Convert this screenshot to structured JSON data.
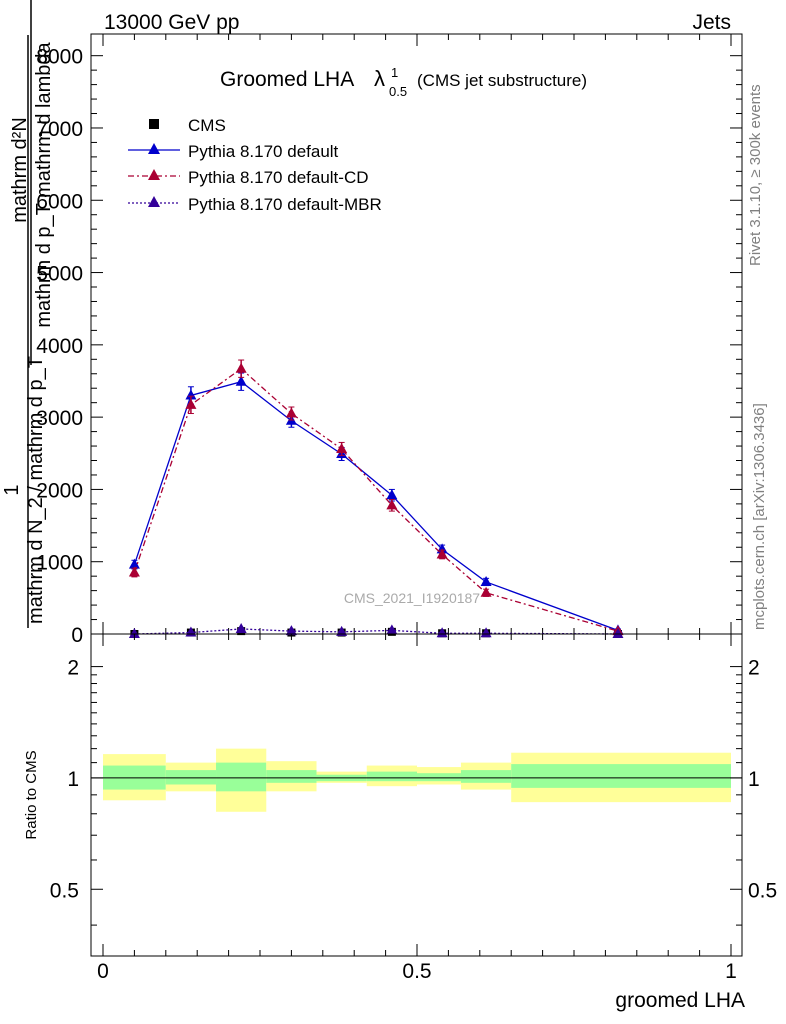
{
  "header": {
    "left": "13000 GeV pp",
    "right": "Jets"
  },
  "side_labels": {
    "rivet": "Rivet 3.1.10, ≥ 300k events",
    "mcplots": "mcplots.cern.ch [arXiv:1306.3436]"
  },
  "watermark": "CMS_2021_I1920187",
  "colors": {
    "cms": "#000000",
    "default": "#0000cc",
    "cd": "#aa0033",
    "mbr": "#330099",
    "band_inner": "#99ff99",
    "band_outer": "#ffff99"
  },
  "chart_data": [
    {
      "type": "line",
      "title": "Groomed LHA",
      "title_symbol": "λ",
      "title_sup": "1",
      "title_sub": "0.5",
      "title_note": "(CMS jet substructure)",
      "ylabel_numerator": "mathrm d²N",
      "ylabel_denominator": "mathrm d p_T mathrm d lambda",
      "ylabel_prefix": "1",
      "ylabel_prefix_den": "mathrm d N / mathrm d p_T",
      "ylabel_lines": [
        "mathrm d²N",
        "mathrm d p_T mathrm d lambda",
        "1",
        "mathrm d N_2 / mathrm d p_T"
      ],
      "xlim": [
        0,
        1
      ],
      "ylim": [
        0,
        8300
      ],
      "yticks": [
        0,
        1000,
        2000,
        3000,
        4000,
        5000,
        6000,
        7000,
        8000
      ],
      "ytick_labels": [
        "0",
        "1000",
        "2000",
        "3000",
        "4000",
        "5000",
        "6000",
        "7000",
        "8000"
      ],
      "legend_position": "top-left",
      "series": [
        {
          "name": "CMS",
          "marker": "square",
          "style": "none",
          "x": [
            0.05,
            0.14,
            0.22,
            0.3,
            0.38,
            0.46,
            0.54,
            0.61,
            0.82
          ],
          "y": [
            0,
            20,
            40,
            20,
            20,
            30,
            10,
            10,
            0
          ]
        },
        {
          "name": "Pythia 8.170 default",
          "marker": "triangle",
          "style": "solid",
          "x": [
            0.05,
            0.14,
            0.22,
            0.3,
            0.38,
            0.46,
            0.54,
            0.61,
            0.82
          ],
          "y": [
            960,
            3300,
            3490,
            2950,
            2490,
            1920,
            1170,
            720,
            50
          ],
          "yerr": [
            60,
            120,
            120,
            90,
            90,
            80,
            60,
            50,
            20
          ]
        },
        {
          "name": "Pythia 8.170 default-CD",
          "marker": "triangle",
          "style": "dashdot",
          "x": [
            0.05,
            0.14,
            0.22,
            0.3,
            0.38,
            0.46,
            0.54,
            0.61,
            0.82
          ],
          "y": [
            850,
            3170,
            3670,
            3050,
            2560,
            1780,
            1100,
            570,
            40
          ],
          "yerr": [
            60,
            120,
            120,
            90,
            90,
            80,
            60,
            50,
            20
          ]
        },
        {
          "name": "Pythia 8.170 default-MBR",
          "marker": "triangle",
          "style": "dotted",
          "x": [
            0.05,
            0.14,
            0.22,
            0.3,
            0.38,
            0.46,
            0.54,
            0.61,
            0.82
          ],
          "y": [
            0,
            20,
            70,
            40,
            30,
            50,
            10,
            10,
            0
          ],
          "yerr": [
            5,
            5,
            10,
            5,
            5,
            5,
            5,
            5,
            5
          ]
        }
      ]
    },
    {
      "type": "area",
      "ylabel": "Ratio to CMS",
      "xlabel": "groomed LHA",
      "xlim": [
        0,
        1
      ],
      "xticks": [
        0,
        0.5,
        1
      ],
      "xtick_labels": [
        "0",
        "0.5",
        "1"
      ],
      "ylim": [
        0.33,
        2.45
      ],
      "yscale": "log",
      "yticks": [
        0.5,
        1,
        2
      ],
      "ytick_labels": [
        "0.5",
        "1",
        "2"
      ],
      "bins": [
        {
          "lo": 0.0,
          "hi": 0.1,
          "inner": [
            0.93,
            1.08
          ],
          "outer": [
            0.87,
            1.16
          ]
        },
        {
          "lo": 0.1,
          "hi": 0.18,
          "inner": [
            0.96,
            1.05
          ],
          "outer": [
            0.92,
            1.1
          ]
        },
        {
          "lo": 0.18,
          "hi": 0.26,
          "inner": [
            0.92,
            1.1
          ],
          "outer": [
            0.81,
            1.2
          ]
        },
        {
          "lo": 0.26,
          "hi": 0.34,
          "inner": [
            0.97,
            1.05
          ],
          "outer": [
            0.92,
            1.11
          ]
        },
        {
          "lo": 0.34,
          "hi": 0.42,
          "inner": [
            0.98,
            1.02
          ],
          "outer": [
            0.97,
            1.04
          ]
        },
        {
          "lo": 0.42,
          "hi": 0.5,
          "inner": [
            0.98,
            1.04
          ],
          "outer": [
            0.95,
            1.08
          ]
        },
        {
          "lo": 0.5,
          "hi": 0.57,
          "inner": [
            0.98,
            1.03
          ],
          "outer": [
            0.96,
            1.07
          ]
        },
        {
          "lo": 0.57,
          "hi": 0.65,
          "inner": [
            0.97,
            1.05
          ],
          "outer": [
            0.93,
            1.1
          ]
        },
        {
          "lo": 0.65,
          "hi": 1.0,
          "inner": [
            0.94,
            1.09
          ],
          "outer": [
            0.86,
            1.17
          ]
        }
      ]
    }
  ]
}
